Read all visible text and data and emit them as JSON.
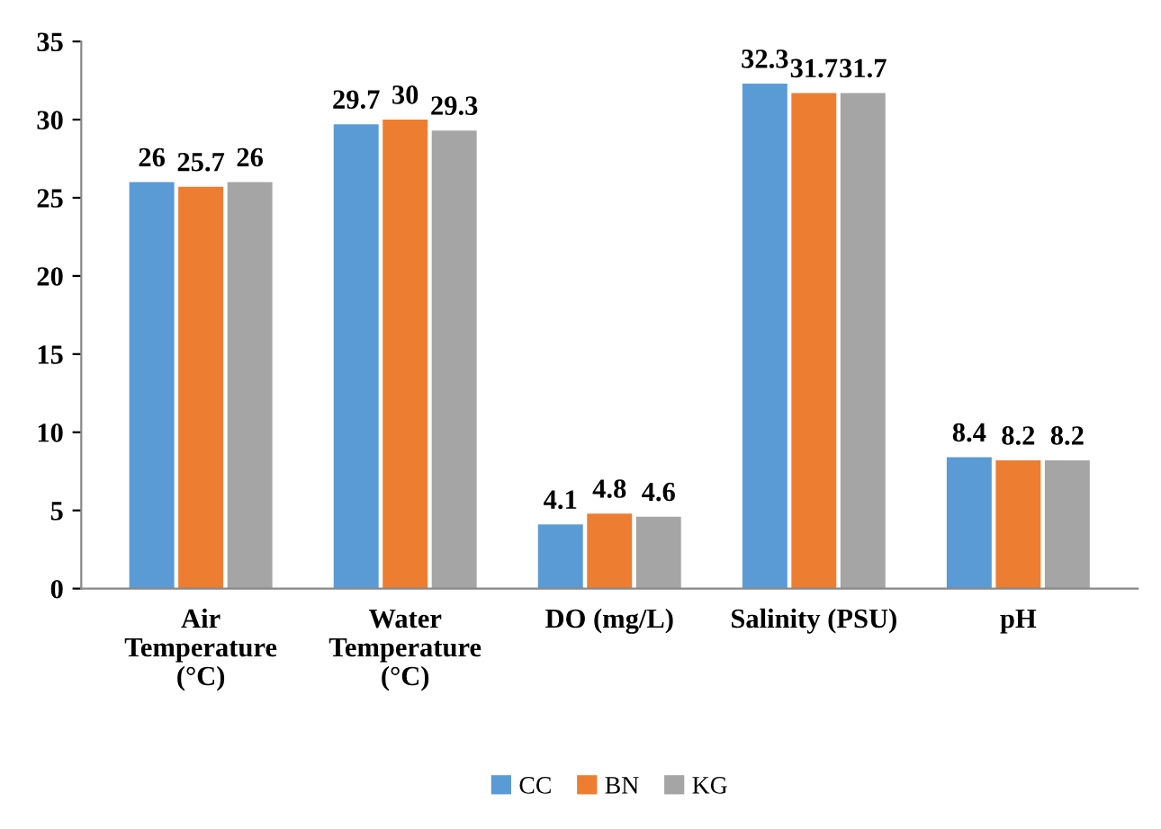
{
  "chart_data": {
    "type": "bar",
    "categories": [
      "Air\nTemperature\n(°C)",
      "Water\nTemperature\n(°C)",
      "DO (mg/L)",
      "Salinity (PSU)",
      "pH"
    ],
    "series": [
      {
        "name": "CC",
        "color": "#5b9bd5",
        "values": [
          26,
          29.7,
          4.1,
          32.3,
          8.4
        ]
      },
      {
        "name": "BN",
        "color": "#ed7d31",
        "values": [
          25.7,
          30,
          4.8,
          31.7,
          8.2
        ]
      },
      {
        "name": "KG",
        "color": "#a5a5a5",
        "values": [
          26,
          29.3,
          4.6,
          31.7,
          8.2
        ]
      }
    ],
    "ylim": [
      0,
      35
    ],
    "yticks": [
      0,
      5,
      10,
      15,
      20,
      25,
      30,
      35
    ],
    "data_labels": true,
    "grid": false,
    "legend": "bottom"
  }
}
